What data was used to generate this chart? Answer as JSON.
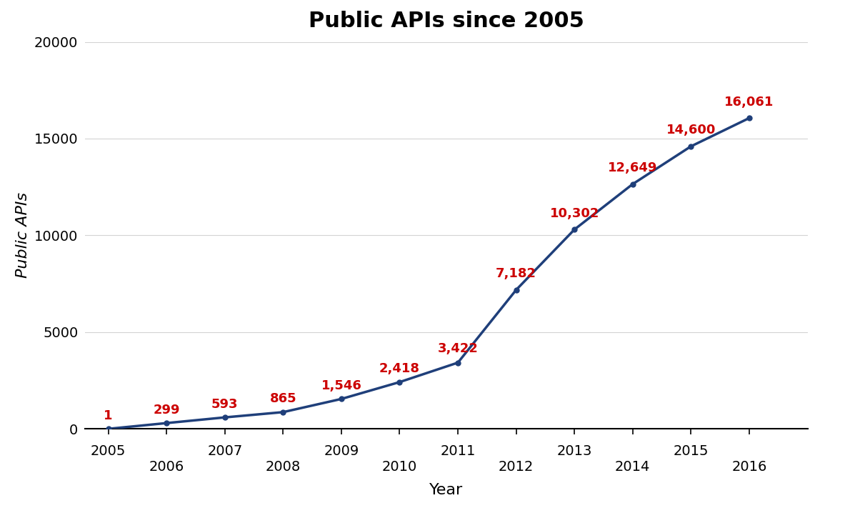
{
  "title": "Public APIs since 2005",
  "xlabel": "Year",
  "ylabel": "Public APIs",
  "years": [
    2005,
    2006,
    2007,
    2008,
    2009,
    2010,
    2011,
    2012,
    2013,
    2014,
    2015,
    2016
  ],
  "values": [
    1,
    299,
    593,
    865,
    1546,
    2418,
    3422,
    7182,
    10302,
    12649,
    14600,
    16061
  ],
  "labels": [
    "1",
    "299",
    "593",
    "865",
    "1,546",
    "2,418",
    "3,422",
    "7,182",
    "10,302",
    "12,649",
    "14,600",
    "16,061"
  ],
  "line_color": "#1F3F7A",
  "label_color": "#CC0000",
  "background_color": "#FFFFFF",
  "ylim": [
    0,
    20000
  ],
  "xlim": [
    2004.6,
    2017.0
  ],
  "yticks": [
    0,
    5000,
    10000,
    15000,
    20000
  ],
  "ytick_labels": [
    "0",
    "5000",
    "10000",
    "15000",
    "20000"
  ],
  "xticks": [
    2005,
    2006,
    2007,
    2008,
    2009,
    2010,
    2011,
    2012,
    2013,
    2014,
    2015,
    2016
  ],
  "title_fontsize": 22,
  "label_fontsize": 16,
  "tick_fontsize": 14,
  "annotation_fontsize": 13,
  "line_width": 2.5,
  "marker_size": 5,
  "ann_offsets_x": [
    0,
    0,
    0,
    0,
    0,
    0,
    0,
    0,
    0,
    0,
    0,
    0
  ],
  "ann_offsets_y": [
    350,
    350,
    350,
    350,
    350,
    350,
    400,
    500,
    500,
    500,
    500,
    500
  ]
}
